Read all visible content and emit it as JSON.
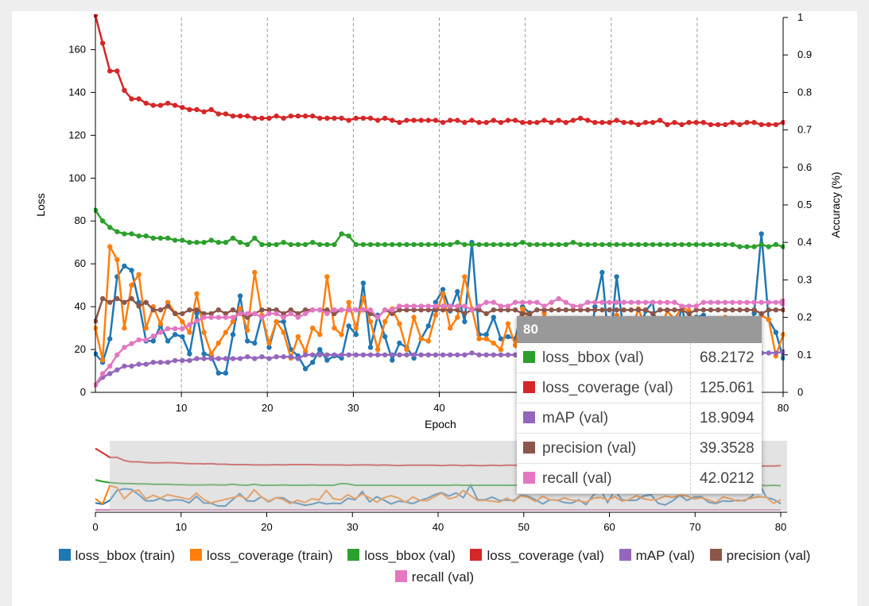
{
  "chart_data": {
    "type": "line",
    "xlabel": "Epoch",
    "ylabel": "Loss",
    "y2label": "Accuracy (%)",
    "xlim": [
      0,
      80
    ],
    "ylim": [
      0,
      175
    ],
    "y2lim": [
      0,
      1
    ],
    "xticks": [
      10,
      20,
      30,
      40,
      50,
      60,
      70,
      80
    ],
    "yticks": [
      0,
      20,
      40,
      60,
      80,
      100,
      120,
      140,
      160
    ],
    "y2ticks": [
      0,
      0.1,
      0.2,
      0.3,
      0.4,
      0.5,
      0.6,
      0.7,
      0.8,
      0.9,
      1
    ],
    "grid": "vertical dashed",
    "legend_position": "bottom",
    "series": [
      {
        "name": "loss_bbox (train)",
        "color": "#1f77b4",
        "axis": "left",
        "values": [
          18,
          14,
          25,
          54,
          59,
          57,
          42,
          24,
          24,
          31,
          24,
          27,
          26,
          18,
          37,
          18,
          17,
          9,
          9,
          27,
          45,
          24,
          23,
          36,
          21,
          33,
          33,
          20,
          17,
          11,
          14,
          20,
          15,
          17,
          16,
          31,
          27,
          51,
          21,
          36,
          26,
          15,
          23,
          21,
          16,
          25,
          31,
          42,
          48,
          38,
          47,
          33,
          70,
          27,
          27,
          35,
          25,
          26,
          25,
          40,
          37,
          27,
          15,
          27,
          26,
          19,
          17,
          27,
          13,
          40,
          56,
          19,
          54,
          27,
          25,
          26,
          38,
          42,
          17,
          12,
          24,
          40,
          25,
          35,
          36,
          20,
          16,
          24,
          22,
          26,
          24,
          37,
          74,
          34,
          28,
          16
        ]
      },
      {
        "name": "loss_coverage (train)",
        "color": "#ff7f0e",
        "axis": "left",
        "values": [
          30,
          15,
          68,
          62,
          30,
          50,
          55,
          30,
          40,
          32,
          42,
          37,
          33,
          28,
          46,
          28,
          18,
          23,
          28,
          33,
          39,
          29,
          56,
          36,
          23,
          33,
          28,
          16,
          26,
          19,
          30,
          27,
          54,
          30,
          27,
          42,
          30,
          44,
          33,
          20,
          33,
          39,
          32,
          20,
          35,
          25,
          24,
          36,
          46,
          30,
          35,
          54,
          39,
          25,
          25,
          23,
          20,
          32,
          22,
          39,
          34,
          22,
          37,
          27,
          25,
          32,
          26,
          24,
          20,
          31,
          34,
          26,
          36,
          23,
          28,
          39,
          30,
          26,
          29,
          38,
          34,
          40,
          38,
          29,
          33,
          27,
          19,
          35,
          30,
          23,
          27,
          32,
          36,
          34,
          17,
          27
        ]
      },
      {
        "name": "loss_bbox (val)",
        "color": "#2ca02c",
        "axis": "left",
        "values": [
          85,
          80,
          77,
          75,
          74,
          74,
          73,
          73,
          72,
          72,
          72,
          71,
          71,
          70,
          70,
          70,
          71,
          70,
          70,
          72,
          70,
          69,
          72,
          69,
          69,
          69,
          70,
          69,
          69,
          69,
          70,
          69,
          69,
          69,
          74,
          73,
          69,
          69,
          69,
          69,
          69,
          69,
          69,
          69,
          69,
          69,
          69,
          69,
          69,
          69,
          70,
          69,
          69,
          69,
          69,
          69,
          69,
          69,
          69,
          70,
          69,
          69,
          69,
          69,
          69,
          69,
          70,
          69,
          69,
          69,
          69,
          69,
          69,
          69,
          69,
          69,
          69,
          69,
          69,
          69,
          69,
          69,
          69,
          69,
          69,
          69,
          69,
          69,
          69,
          68,
          68,
          68,
          69,
          68,
          69,
          68
        ]
      },
      {
        "name": "loss_coverage (val)",
        "color": "#d62728",
        "axis": "left",
        "values": [
          176,
          163,
          150,
          150,
          141,
          137,
          137,
          135,
          134,
          134,
          135,
          134,
          133,
          132,
          132,
          131,
          132,
          130,
          130,
          129,
          129,
          129,
          128,
          128,
          128,
          129,
          128,
          129,
          129,
          129,
          129,
          128,
          128,
          128,
          128,
          127,
          128,
          128,
          128,
          127,
          128,
          127,
          126,
          127,
          127,
          127,
          127,
          127,
          126,
          127,
          127,
          126,
          127,
          126,
          126,
          127,
          126,
          127,
          127,
          126,
          126,
          126,
          127,
          126,
          127,
          126,
          127,
          128,
          127,
          126,
          126,
          126,
          127,
          126,
          126,
          125,
          126,
          126,
          127,
          125,
          126,
          125,
          126,
          126,
          126,
          125,
          125,
          125,
          126,
          125,
          126,
          126,
          125,
          125,
          125,
          126
        ]
      },
      {
        "name": "mAP (val)",
        "color": "#9467bd",
        "axis": "right",
        "values": [
          0.02,
          0.04,
          0.05,
          0.06,
          0.07,
          0.07,
          0.075,
          0.075,
          0.08,
          0.08,
          0.08,
          0.085,
          0.085,
          0.085,
          0.09,
          0.09,
          0.09,
          0.09,
          0.09,
          0.09,
          0.09,
          0.095,
          0.09,
          0.095,
          0.09,
          0.095,
          0.095,
          0.095,
          0.09,
          0.1,
          0.1,
          0.1,
          0.1,
          0.1,
          0.1,
          0.1,
          0.1,
          0.1,
          0.1,
          0.1,
          0.1,
          0.1,
          0.1,
          0.1,
          0.1,
          0.1,
          0.1,
          0.1,
          0.1,
          0.1,
          0.1,
          0.1,
          0.105,
          0.1,
          0.1,
          0.1,
          0.1,
          0.1,
          0.1,
          0.1,
          0.1,
          0.1,
          0.1,
          0.1,
          0.1,
          0.1,
          0.1,
          0.105,
          0.105,
          0.105,
          0.105,
          0.105,
          0.105,
          0.105,
          0.105,
          0.105,
          0.105,
          0.105,
          0.105,
          0.105,
          0.105,
          0.105,
          0.105,
          0.105,
          0.105,
          0.105,
          0.105,
          0.105,
          0.105,
          0.105,
          0.105,
          0.105,
          0.105,
          0.105,
          0.105,
          0.108
        ]
      },
      {
        "name": "precision (val)",
        "color": "#8c564b",
        "axis": "right",
        "values": [
          0.19,
          0.25,
          0.24,
          0.25,
          0.24,
          0.25,
          0.23,
          0.24,
          0.22,
          0.22,
          0.23,
          0.21,
          0.21,
          0.22,
          0.22,
          0.21,
          0.21,
          0.22,
          0.21,
          0.22,
          0.21,
          0.2,
          0.21,
          0.22,
          0.22,
          0.22,
          0.21,
          0.22,
          0.21,
          0.22,
          0.22,
          0.22,
          0.22,
          0.21,
          0.22,
          0.22,
          0.22,
          0.22,
          0.21,
          0.2,
          0.22,
          0.21,
          0.22,
          0.22,
          0.22,
          0.22,
          0.22,
          0.22,
          0.22,
          0.22,
          0.22,
          0.21,
          0.22,
          0.22,
          0.21,
          0.22,
          0.22,
          0.22,
          0.22,
          0.21,
          0.21,
          0.22,
          0.22,
          0.22,
          0.22,
          0.22,
          0.22,
          0.22,
          0.22,
          0.22,
          0.22,
          0.22,
          0.22,
          0.22,
          0.22,
          0.22,
          0.22,
          0.21,
          0.22,
          0.22,
          0.22,
          0.22,
          0.21,
          0.22,
          0.22,
          0.22,
          0.22,
          0.22,
          0.22,
          0.22,
          0.22,
          0.22,
          0.21,
          0.22,
          0.22,
          0.22
        ]
      },
      {
        "name": "recall (val)",
        "color": "#e377c2",
        "axis": "right",
        "values": [
          0.02,
          0.05,
          0.07,
          0.1,
          0.12,
          0.13,
          0.14,
          0.14,
          0.15,
          0.16,
          0.17,
          0.17,
          0.17,
          0.18,
          0.19,
          0.2,
          0.2,
          0.2,
          0.2,
          0.2,
          0.21,
          0.21,
          0.21,
          0.2,
          0.21,
          0.21,
          0.2,
          0.21,
          0.2,
          0.21,
          0.22,
          0.22,
          0.21,
          0.22,
          0.22,
          0.22,
          0.22,
          0.22,
          0.22,
          0.2,
          0.22,
          0.22,
          0.23,
          0.23,
          0.23,
          0.23,
          0.23,
          0.23,
          0.23,
          0.23,
          0.23,
          0.23,
          0.22,
          0.23,
          0.24,
          0.24,
          0.23,
          0.23,
          0.24,
          0.24,
          0.24,
          0.24,
          0.23,
          0.24,
          0.25,
          0.24,
          0.23,
          0.23,
          0.24,
          0.24,
          0.24,
          0.24,
          0.24,
          0.24,
          0.24,
          0.24,
          0.24,
          0.24,
          0.24,
          0.24,
          0.24,
          0.23,
          0.23,
          0.23,
          0.24,
          0.24,
          0.24,
          0.24,
          0.24,
          0.24,
          0.24,
          0.24,
          0.24,
          0.24,
          0.24,
          0.24
        ]
      }
    ],
    "brush": {
      "xlim": [
        0,
        80
      ],
      "xticks": [
        0,
        10,
        20,
        30,
        40,
        50,
        60,
        70,
        80
      ],
      "selected_range": [
        1.5,
        80
      ]
    }
  },
  "tooltip": {
    "header": "80",
    "rows": [
      {
        "name": "loss_bbox (val)",
        "value": "68.2172",
        "color": "#2ca02c"
      },
      {
        "name": "loss_coverage (val)",
        "value": "125.061",
        "color": "#d62728"
      },
      {
        "name": "mAP (val)",
        "value": "18.9094",
        "color": "#9467bd"
      },
      {
        "name": "precision (val)",
        "value": "39.3528",
        "color": "#8c564b"
      },
      {
        "name": "recall (val)",
        "value": "42.0212",
        "color": "#e377c2"
      }
    ]
  },
  "legend": [
    {
      "name": "loss_bbox (train)",
      "color": "#1f77b4"
    },
    {
      "name": "loss_coverage (train)",
      "color": "#ff7f0e"
    },
    {
      "name": "loss_bbox (val)",
      "color": "#2ca02c"
    },
    {
      "name": "loss_coverage (val)",
      "color": "#d62728"
    },
    {
      "name": "mAP (val)",
      "color": "#9467bd"
    },
    {
      "name": "precision (val)",
      "color": "#8c564b"
    },
    {
      "name": "recall (val)",
      "color": "#e377c2"
    }
  ]
}
